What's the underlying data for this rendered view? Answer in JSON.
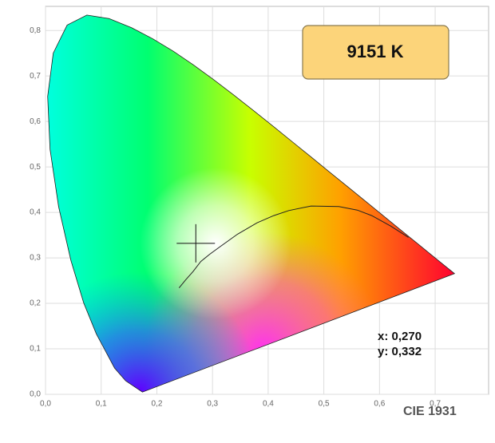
{
  "chart_data": {
    "type": "scatter",
    "x": [
      0.27
    ],
    "values": [
      0.332
    ],
    "x_labels": [
      "x: 0,270"
    ],
    "value_labels": [
      "y: 0,332"
    ],
    "color_temperature": "9151 K",
    "annotation": "CIE 1931",
    "xlim": [
      0,
      0.796
    ],
    "ylim": [
      0,
      0.853
    ],
    "xticks": [
      {
        "value": 0,
        "label": "0,0"
      },
      {
        "value": 0.1,
        "label": "0,1"
      },
      {
        "value": 0.2,
        "label": "0,2"
      },
      {
        "value": 0.3,
        "label": "0,3"
      },
      {
        "value": 0.4,
        "label": "0,4"
      },
      {
        "value": 0.5,
        "label": "0,5"
      },
      {
        "value": 0.6,
        "label": "0,6"
      },
      {
        "value": 0.7,
        "label": "0,7"
      }
    ],
    "yticks": [
      {
        "value": 0,
        "label": "0,0"
      },
      {
        "value": 0.1,
        "label": "0,1"
      },
      {
        "value": 0.2,
        "label": "0,2"
      },
      {
        "value": 0.3,
        "label": "0,3"
      },
      {
        "value": 0.4,
        "label": "0,4"
      },
      {
        "value": 0.5,
        "label": "0,5"
      },
      {
        "value": 0.6,
        "label": "0,6"
      },
      {
        "value": 0.7,
        "label": "0,7"
      },
      {
        "value": 0.8,
        "label": "0,8"
      }
    ],
    "grid": true
  }
}
